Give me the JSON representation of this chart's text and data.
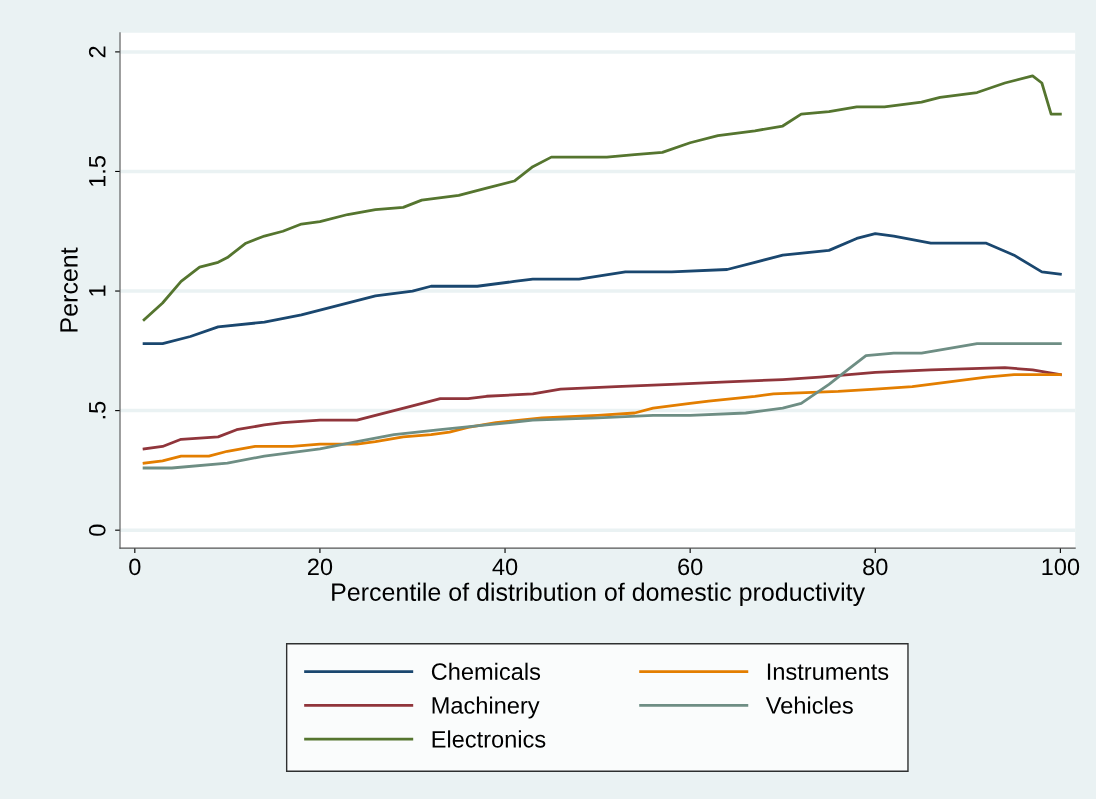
{
  "chart_data": {
    "type": "line",
    "xlabel": "Percentile of distribution of domestic productivity",
    "ylabel": "Percent",
    "xlim": [
      -1.6,
      101.6
    ],
    "xticks": [
      0,
      20,
      40,
      60,
      80,
      100
    ],
    "ylim": [
      -0.075,
      2.08
    ],
    "yticks": [
      {
        "value": 0,
        "label": "0"
      },
      {
        "value": 0.5,
        "label": ".5"
      },
      {
        "value": 1,
        "label": "1"
      },
      {
        "value": 1.5,
        "label": "1.5"
      },
      {
        "value": 2,
        "label": "2"
      }
    ],
    "grid": "y",
    "legend": "bottom",
    "marker": "none",
    "line_style": "solid",
    "series": [
      {
        "name": "Chemicals",
        "color": "#1a476f",
        "x": [
          1,
          3,
          6,
          9,
          14,
          18,
          22,
          26,
          30,
          32,
          37,
          41,
          43,
          48,
          53,
          58,
          64,
          67,
          70,
          75,
          78,
          80,
          82,
          86,
          92,
          95,
          98,
          100
        ],
        "values": [
          0.78,
          0.78,
          0.81,
          0.85,
          0.87,
          0.9,
          0.94,
          0.98,
          1.0,
          1.02,
          1.02,
          1.04,
          1.05,
          1.05,
          1.08,
          1.08,
          1.09,
          1.12,
          1.15,
          1.17,
          1.22,
          1.24,
          1.23,
          1.2,
          1.2,
          1.15,
          1.08,
          1.07
        ]
      },
      {
        "name": "Machinery",
        "color": "#90353b",
        "x": [
          1,
          3,
          5,
          9,
          11,
          14,
          16,
          20,
          24,
          26,
          28,
          30,
          33,
          36,
          38,
          43,
          46,
          52,
          58,
          64,
          70,
          74,
          80,
          86,
          94,
          97,
          100
        ],
        "values": [
          0.34,
          0.35,
          0.38,
          0.39,
          0.42,
          0.44,
          0.45,
          0.46,
          0.46,
          0.48,
          0.5,
          0.52,
          0.55,
          0.55,
          0.56,
          0.57,
          0.59,
          0.6,
          0.61,
          0.62,
          0.63,
          0.64,
          0.66,
          0.67,
          0.68,
          0.67,
          0.65
        ]
      },
      {
        "name": "Electronics",
        "color": "#55752f",
        "x": [
          1,
          3,
          5,
          7,
          9,
          10,
          12,
          14,
          16,
          18,
          20,
          23,
          26,
          29,
          31,
          35,
          38,
          41,
          43,
          45,
          48,
          51,
          54,
          57,
          60,
          63,
          67,
          70,
          72,
          75,
          78,
          81,
          85,
          87,
          91,
          94,
          97,
          98,
          99,
          100
        ],
        "values": [
          0.88,
          0.95,
          1.04,
          1.1,
          1.12,
          1.14,
          1.2,
          1.23,
          1.25,
          1.28,
          1.29,
          1.32,
          1.34,
          1.35,
          1.38,
          1.4,
          1.43,
          1.46,
          1.52,
          1.56,
          1.56,
          1.56,
          1.57,
          1.58,
          1.62,
          1.65,
          1.67,
          1.69,
          1.74,
          1.75,
          1.77,
          1.77,
          1.79,
          1.81,
          1.83,
          1.87,
          1.9,
          1.87,
          1.74,
          1.74
        ]
      },
      {
        "name": "Instruments",
        "color": "#e37e00",
        "x": [
          1,
          3,
          5,
          8,
          10,
          13,
          17,
          20,
          24,
          26,
          29,
          32,
          34,
          36,
          39,
          44,
          50,
          54,
          56,
          60,
          62,
          67,
          69,
          76,
          80,
          84,
          88,
          92,
          95,
          100
        ],
        "values": [
          0.28,
          0.29,
          0.31,
          0.31,
          0.33,
          0.35,
          0.35,
          0.36,
          0.36,
          0.37,
          0.39,
          0.4,
          0.41,
          0.43,
          0.45,
          0.47,
          0.48,
          0.49,
          0.51,
          0.53,
          0.54,
          0.56,
          0.57,
          0.58,
          0.59,
          0.6,
          0.62,
          0.64,
          0.65,
          0.65
        ]
      },
      {
        "name": "Vehicles",
        "color": "#6e8e84",
        "x": [
          1,
          4,
          10,
          14,
          20,
          24,
          28,
          33,
          38,
          43,
          50,
          56,
          60,
          66,
          70,
          72,
          75,
          77,
          79,
          82,
          85,
          88,
          91,
          100
        ],
        "values": [
          0.26,
          0.26,
          0.28,
          0.31,
          0.34,
          0.37,
          0.4,
          0.42,
          0.44,
          0.46,
          0.47,
          0.48,
          0.48,
          0.49,
          0.51,
          0.53,
          0.61,
          0.67,
          0.73,
          0.74,
          0.74,
          0.76,
          0.78,
          0.78
        ]
      }
    ]
  }
}
